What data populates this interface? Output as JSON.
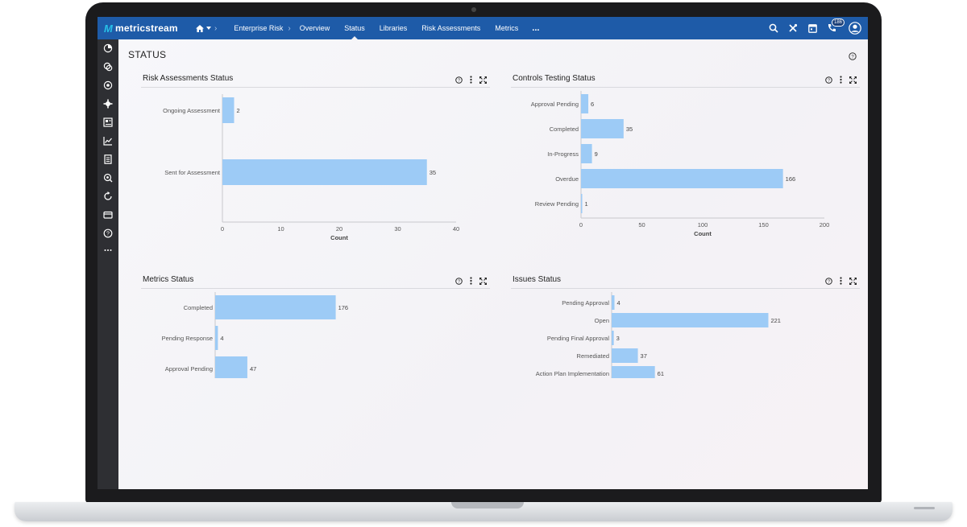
{
  "app": {
    "logo_text": "metricstream",
    "logo_mark": "M"
  },
  "nav": {
    "home_icon": "home-icon",
    "items": [
      {
        "label": "Enterprise Risk",
        "active": false
      },
      {
        "label": "Overview",
        "active": false
      },
      {
        "label": "Status",
        "active": true
      },
      {
        "label": "Libraries",
        "active": false
      },
      {
        "label": "Risk Assessments",
        "active": false
      },
      {
        "label": "Metrics",
        "active": false
      }
    ],
    "more_label": "...",
    "notification_count": "186"
  },
  "page": {
    "title": "STATUS"
  },
  "panels": {
    "risk_assessments": {
      "title": "Risk Assessments Status"
    },
    "controls_testing": {
      "title": "Controls Testing Status"
    },
    "metrics": {
      "title": "Metrics Status"
    },
    "issues": {
      "title": "Issues Status"
    }
  },
  "chart_data": [
    {
      "type": "bar",
      "orientation": "horizontal",
      "title": "Risk Assessments Status",
      "categories": [
        "Ongoing Assessment",
        "Sent for Assessment"
      ],
      "values": [
        2,
        35
      ],
      "xlabel": "Count",
      "xlim": [
        0,
        40
      ],
      "xticks": [
        0,
        10,
        20,
        30,
        40
      ],
      "bar_color": "#9dcbf6"
    },
    {
      "type": "bar",
      "orientation": "horizontal",
      "title": "Controls Testing Status",
      "categories": [
        "Approval Pending",
        "Completed",
        "In-Progress",
        "Overdue",
        "Review Pending"
      ],
      "values": [
        6,
        35,
        9,
        166,
        1
      ],
      "xlabel": "Count",
      "xlim": [
        0,
        200
      ],
      "xticks": [
        0,
        50,
        100,
        150,
        200
      ],
      "bar_color": "#9dcbf6"
    },
    {
      "type": "bar",
      "orientation": "horizontal",
      "title": "Metrics Status",
      "categories": [
        "Completed",
        "Pending Response",
        "Approval Pending"
      ],
      "values": [
        176,
        4,
        47
      ],
      "xlabel": "",
      "bar_color": "#9dcbf6"
    },
    {
      "type": "bar",
      "orientation": "horizontal",
      "title": "Issues Status",
      "categories": [
        "Pending Approval",
        "Open",
        "Pending Final Approval",
        "Remediated",
        "Action Plan Implementation"
      ],
      "values": [
        4,
        221,
        3,
        37,
        61
      ],
      "xlabel": "",
      "bar_color": "#9dcbf6"
    }
  ]
}
